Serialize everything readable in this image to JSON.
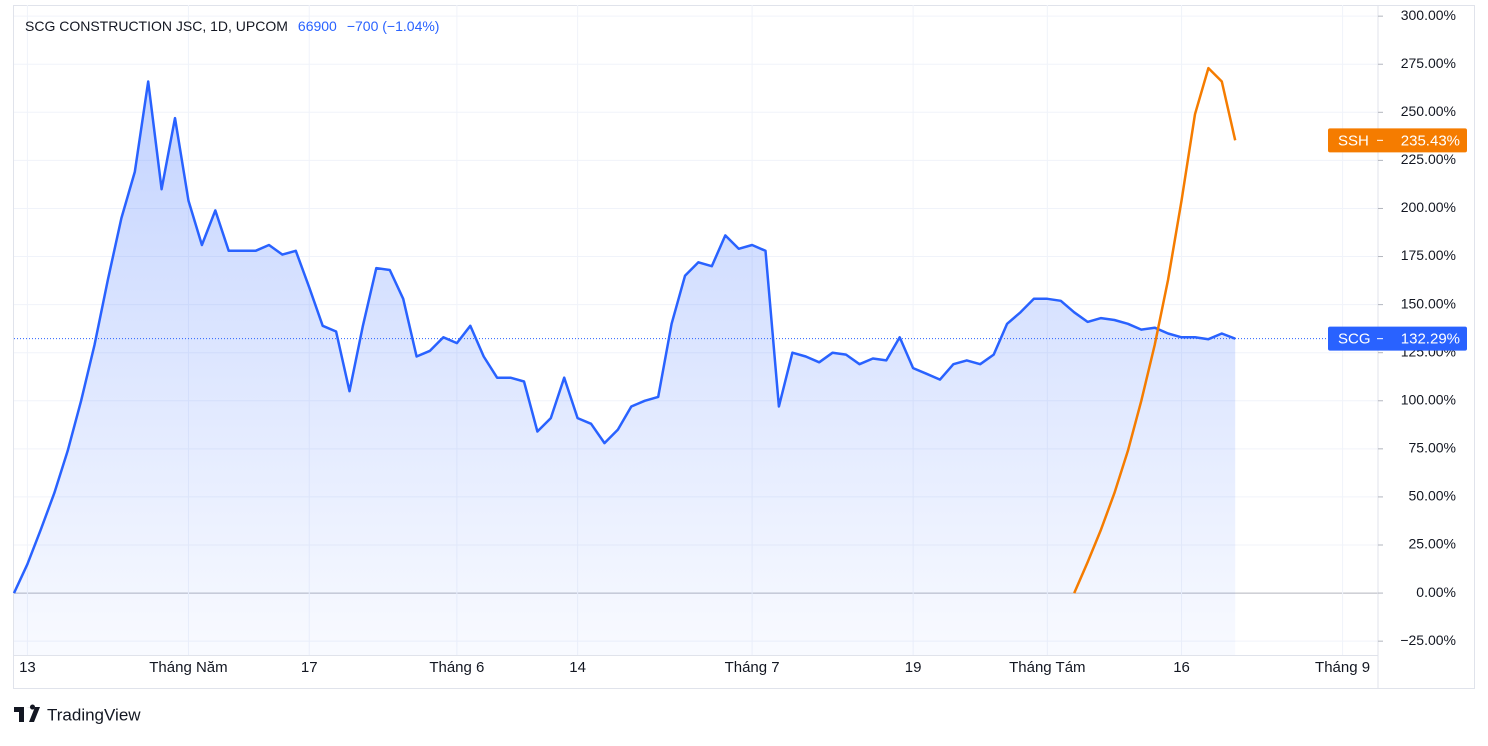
{
  "chart_data": {
    "type": "line",
    "title": "SCG CONSTRUCTION JSC, 1D, UPCOM",
    "last_price": "66900",
    "change": "−700 (−1.04%)",
    "branding": "TradingView",
    "categories": [
      null,
      "13",
      null,
      null,
      null,
      null,
      null,
      null,
      null,
      null,
      null,
      null,
      null,
      "Tháng Năm",
      null,
      null,
      null,
      null,
      null,
      null,
      null,
      null,
      "17",
      null,
      null,
      null,
      null,
      null,
      null,
      null,
      null,
      null,
      null,
      "Tháng 6",
      null,
      null,
      null,
      null,
      null,
      null,
      null,
      null,
      "14",
      null,
      null,
      null,
      null,
      null,
      null,
      null,
      null,
      null,
      null,
      null,
      null,
      "Tháng 7",
      null,
      null,
      null,
      null,
      null,
      null,
      null,
      null,
      null,
      null,
      null,
      "19",
      null,
      null,
      null,
      null,
      null,
      null,
      null,
      null,
      null,
      "Tháng Tám",
      null,
      null,
      null,
      null,
      null,
      null,
      null,
      null,
      null,
      "16",
      null,
      null,
      null,
      null,
      null,
      null,
      null,
      null,
      null,
      null,
      null,
      "Tháng 9",
      null,
      null
    ],
    "series": [
      {
        "name": "SCG",
        "color": "#2962ff",
        "area": true,
        "values": [
          0,
          15,
          33,
          52,
          74,
          100,
          129,
          163,
          195,
          219,
          266,
          210,
          247,
          204,
          181,
          199,
          178,
          178,
          178,
          181,
          176,
          178,
          159,
          139,
          136,
          105,
          139,
          169,
          168,
          153,
          123,
          126,
          133,
          130,
          139,
          123,
          112,
          112,
          110,
          84,
          91,
          112,
          91,
          88,
          78,
          85,
          97,
          100,
          102,
          140,
          165,
          172,
          170,
          186,
          179,
          181,
          178,
          97,
          125,
          123,
          120,
          125,
          124,
          119,
          122,
          121,
          133,
          117,
          114,
          111,
          119,
          121,
          119,
          124,
          140,
          146,
          153,
          153,
          152,
          146,
          141,
          143,
          142,
          140,
          137,
          138,
          135,
          133,
          133,
          132,
          135,
          132.29,
          null,
          null,
          null,
          null,
          null,
          null,
          null,
          null,
          null,
          null
        ],
        "value_labels": [
          null,
          null,
          null,
          null,
          null,
          null,
          null,
          null,
          null,
          null,
          null,
          null,
          null,
          null,
          null,
          null,
          null,
          null,
          null,
          null,
          null,
          null,
          null,
          null,
          null,
          null,
          null,
          null,
          null,
          null,
          null,
          null,
          null,
          null,
          null,
          null,
          null,
          null,
          null,
          null,
          null,
          null,
          null,
          null,
          null,
          null,
          null,
          null,
          null,
          null,
          null,
          null,
          null,
          null,
          null,
          null,
          null,
          null,
          null,
          null,
          null,
          null,
          null,
          null,
          null,
          null,
          null,
          null,
          null,
          null,
          null,
          null,
          null,
          null,
          null,
          null,
          null,
          null,
          null,
          null,
          null,
          null,
          null,
          null,
          null,
          null,
          null,
          null,
          null,
          null,
          null,
          "132.29%",
          null,
          null,
          null,
          null,
          null,
          null,
          null,
          null,
          null,
          null
        ]
      },
      {
        "name": "SSH",
        "color": "#f57c00",
        "area": false,
        "values": [
          null,
          null,
          null,
          null,
          null,
          null,
          null,
          null,
          null,
          null,
          null,
          null,
          null,
          null,
          null,
          null,
          null,
          null,
          null,
          null,
          null,
          null,
          null,
          null,
          null,
          null,
          null,
          null,
          null,
          null,
          null,
          null,
          null,
          null,
          null,
          null,
          null,
          null,
          null,
          null,
          null,
          null,
          null,
          null,
          null,
          null,
          null,
          null,
          null,
          null,
          null,
          null,
          null,
          null,
          null,
          null,
          null,
          null,
          null,
          null,
          null,
          null,
          null,
          null,
          null,
          null,
          null,
          null,
          null,
          null,
          null,
          null,
          null,
          null,
          null,
          null,
          null,
          null,
          null,
          0,
          16,
          33,
          52,
          74,
          100,
          129,
          163,
          204,
          249,
          273,
          266,
          235.43,
          null,
          null,
          null,
          null,
          null,
          null,
          null,
          null,
          null,
          null
        ],
        "value_labels": [
          null,
          null,
          null,
          null,
          null,
          null,
          null,
          null,
          null,
          null,
          null,
          null,
          null,
          null,
          null,
          null,
          null,
          null,
          null,
          null,
          null,
          null,
          null,
          null,
          null,
          null,
          null,
          null,
          null,
          null,
          null,
          null,
          null,
          null,
          null,
          null,
          null,
          null,
          null,
          null,
          null,
          null,
          null,
          null,
          null,
          null,
          null,
          null,
          null,
          null,
          null,
          null,
          null,
          null,
          null,
          null,
          null,
          null,
          null,
          null,
          null,
          null,
          null,
          null,
          null,
          null,
          null,
          null,
          null,
          null,
          null,
          null,
          null,
          null,
          null,
          null,
          null,
          null,
          null,
          null,
          null,
          null,
          null,
          null,
          null,
          null,
          null,
          null,
          null,
          null,
          null,
          "235.43%",
          null,
          null,
          null,
          null,
          null,
          null,
          null,
          null,
          null,
          null
        ]
      }
    ],
    "ylim": [
      -32.2,
      305.8
    ],
    "yticks": [
      {
        "value": -25,
        "label": "−25.00%"
      },
      {
        "value": 0,
        "label": "0.00%"
      },
      {
        "value": 25,
        "label": "25.00%"
      },
      {
        "value": 50,
        "label": "50.00%"
      },
      {
        "value": 75,
        "label": "75.00%"
      },
      {
        "value": 100,
        "label": "100.00%"
      },
      {
        "value": 125,
        "label": "125.00%"
      },
      {
        "value": 150,
        "label": "150.00%"
      },
      {
        "value": 175,
        "label": "175.00%"
      },
      {
        "value": 200,
        "label": "200.00%"
      },
      {
        "value": 225,
        "label": "225.00%"
      },
      {
        "value": 250,
        "label": "250.00%"
      },
      {
        "value": 275,
        "label": "275.00%"
      },
      {
        "value": 300,
        "label": "300.00%"
      }
    ],
    "grid": true
  }
}
